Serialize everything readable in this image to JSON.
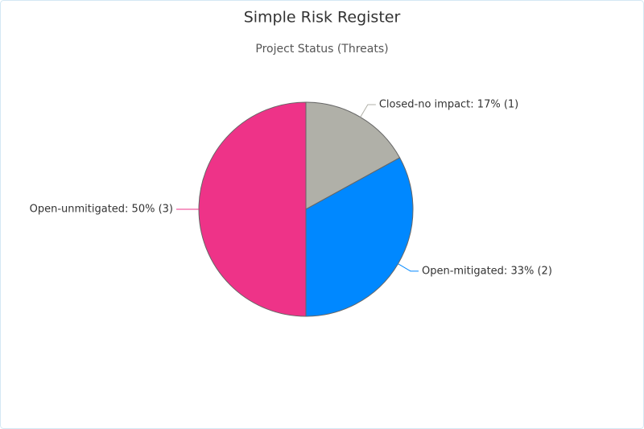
{
  "chart_data": {
    "type": "pie",
    "title": "Simple Risk Register",
    "subtitle": "Project Status (Threats)",
    "values": [
      17,
      33,
      50
    ],
    "value_labels": [
      "Closed-no impact: 17% (1)",
      "Open-mitigated: 33% (2)",
      "Open-unmitigated: 50% (3)"
    ],
    "colors": [
      "#b0b0a8",
      "#0088ff",
      "#ee3388"
    ]
  }
}
